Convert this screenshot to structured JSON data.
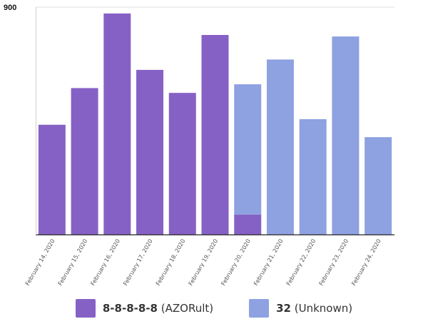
{
  "chart_data": {
    "type": "bar",
    "stacked": true,
    "categories": [
      "February 14, 2020",
      "February 15, 2020",
      "February 16, 2020",
      "February 17, 2020",
      "February 18, 2020",
      "February 19, 2020",
      "February 20, 2020",
      "February 21, 2020",
      "February 22, 2020",
      "February 23, 2020",
      "February 24, 2020"
    ],
    "series": [
      {
        "name": "8-8-8-8-8",
        "sub": "(AZORult)",
        "color": "#8661c5",
        "values": [
          435,
          580,
          875,
          652,
          561,
          790,
          80,
          0,
          0,
          0,
          0
        ]
      },
      {
        "name": "32",
        "sub": "(Unknown)",
        "color": "#8ea1e1",
        "values": [
          0,
          0,
          0,
          0,
          0,
          0,
          515,
          693,
          457,
          784,
          386
        ]
      }
    ],
    "yticks": [
      900
    ],
    "ylim": [
      0,
      900
    ],
    "grid": true,
    "legend_position": "bottom"
  }
}
